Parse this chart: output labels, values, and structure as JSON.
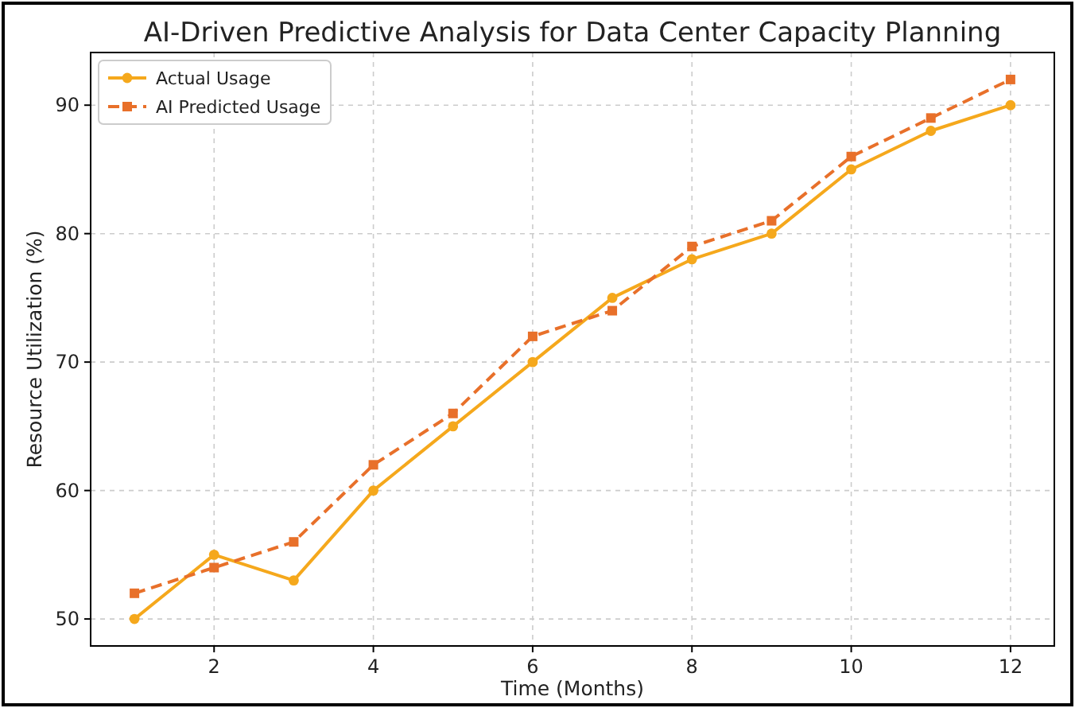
{
  "chart_data": {
    "type": "line",
    "title": "AI-Driven Predictive Analysis for Data Center Capacity Planning",
    "xlabel": "Time (Months)",
    "ylabel": "Resource Utilization (%)",
    "x": [
      1,
      2,
      3,
      4,
      5,
      6,
      7,
      8,
      9,
      10,
      11,
      12
    ],
    "series": [
      {
        "name": "Actual Usage",
        "color": "#f5a81c",
        "marker": "circle",
        "line_style": "solid",
        "values": [
          50,
          55,
          53,
          60,
          65,
          70,
          75,
          78,
          80,
          85,
          88,
          90
        ]
      },
      {
        "name": "AI Predicted Usage",
        "color": "#e8702a",
        "marker": "square",
        "line_style": "dashed",
        "values": [
          52,
          54,
          56,
          62,
          66,
          72,
          74,
          79,
          81,
          86,
          89,
          92
        ]
      }
    ],
    "xlim": [
      0.45,
      12.55
    ],
    "xticks": [
      2,
      4,
      6,
      8,
      10,
      12
    ],
    "ylim": [
      47.9,
      94.1
    ],
    "yticks": [
      50,
      60,
      70,
      80,
      90
    ],
    "grid": true,
    "legend": "top left"
  }
}
